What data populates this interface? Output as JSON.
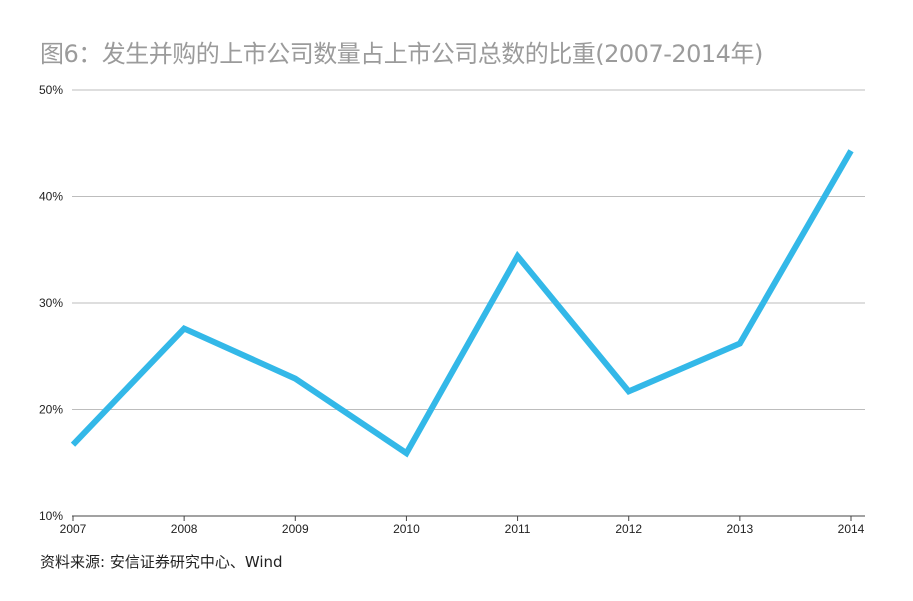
{
  "title": "图6：发生并购的上市公司数量占上市公司总数的比重(2007-2014年)",
  "source": "资料来源: 安信证券研究中心、Wind",
  "chart_data": {
    "type": "line",
    "title": "图6：发生并购的上市公司数量占上市公司总数的比重(2007-2014年)",
    "categories": [
      "2007",
      "2008",
      "2009",
      "2010",
      "2011",
      "2012",
      "2013",
      "2014"
    ],
    "series": [
      {
        "values": [
          16.7,
          27.6,
          22.9,
          15.9,
          34.4,
          21.7,
          26.2,
          44.3
        ]
      }
    ],
    "yticks": [
      10,
      20,
      30,
      40,
      50
    ],
    "ytick_labels": [
      "10%",
      "20%",
      "30%",
      "40%",
      "50%"
    ],
    "ylim": [
      10,
      50
    ],
    "grid": true,
    "line_color": "#33b8e8",
    "xlabel": "",
    "ylabel": ""
  }
}
